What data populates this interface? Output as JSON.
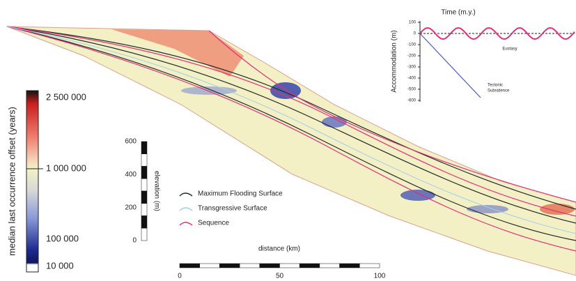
{
  "colorbar": {
    "label": "median last occurrence offset (years)",
    "ticks": [
      "2 500 000",
      "1 000 000",
      "100 000",
      "10 000"
    ]
  },
  "elevation_bar": {
    "label": "elevation (m)",
    "ticks": [
      600,
      400,
      200,
      0
    ]
  },
  "distance_bar": {
    "label": "distance (km)",
    "ticks": [
      0,
      50,
      100
    ]
  },
  "legend": [
    {
      "label": "Maximum Flooding Surface",
      "color": "#1f2a2a"
    },
    {
      "label": "Transgressive Surface",
      "color": "#9fd0e8"
    },
    {
      "label": "Sequence",
      "color": "#e0307a"
    }
  ],
  "inset": {
    "title": "Time (m.y.)",
    "y_label": "Accommodation (m)",
    "yticks": [
      100,
      0,
      -100,
      -200,
      -300,
      -400,
      -500,
      -600
    ],
    "eustasy_label": "Eustasy",
    "subsidence_label": [
      "Tectonic",
      "Subsidence"
    ]
  }
}
